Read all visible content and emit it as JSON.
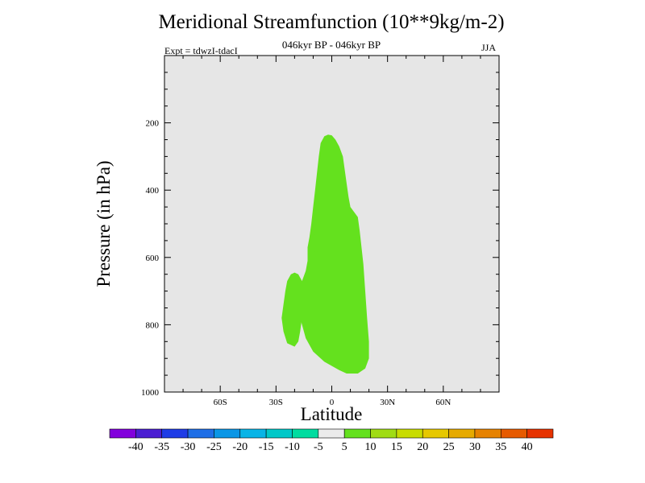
{
  "chart_data": {
    "type": "contour",
    "title": "Meridional Streamfunction (10**9kg/m-2)",
    "subtitle": "046kyr BP - 046kyr BP",
    "left_label": "Expt = tdwzI-tdacI",
    "right_label": "JJA",
    "xlabel": "Latitude",
    "ylabel": "Pressure (in hPa)",
    "xlim": [
      -90,
      90
    ],
    "ylim": [
      1000,
      0
    ],
    "x_ticks": [
      -60,
      -30,
      0,
      30,
      60
    ],
    "x_tick_labels": [
      "60S",
      "30S",
      "0",
      "30N",
      "60N"
    ],
    "y_ticks": [
      200,
      400,
      600,
      800,
      1000
    ],
    "y_tick_labels": [
      "200",
      "400",
      "600",
      "800",
      "1000"
    ],
    "background_color": "#e6e6e6",
    "colorbar": {
      "labels": [
        "-40",
        "-35",
        "-30",
        "-25",
        "-20",
        "-15",
        "-10",
        "-5",
        "5",
        "10",
        "15",
        "20",
        "25",
        "30",
        "35",
        "40"
      ],
      "colors": [
        "#8200dc",
        "#4b1ed2",
        "#1e3ce6",
        "#1e6ee6",
        "#0a96e6",
        "#08b4e6",
        "#00c8c8",
        "#00dca0",
        "#ebebeb",
        "#64e11e",
        "#a0dc14",
        "#c8dc00",
        "#e6c800",
        "#e6aa00",
        "#e68200",
        "#e65a00",
        "#e63200"
      ]
    },
    "regions": [
      {
        "value_range": "5 to 10",
        "color": "#64e11e",
        "points": [
          [
            4,
            935
          ],
          [
            -4,
            910
          ],
          [
            -10,
            880
          ],
          [
            -14,
            840
          ],
          [
            -16,
            800
          ],
          [
            -18,
            760
          ],
          [
            -19,
            720
          ],
          [
            -18,
            690
          ],
          [
            -16,
            670
          ],
          [
            -14,
            640
          ],
          [
            -13,
            610
          ],
          [
            -13,
            570
          ],
          [
            -12,
            540
          ],
          [
            -11,
            500
          ],
          [
            -10,
            450
          ],
          [
            -9,
            400
          ],
          [
            -8,
            350
          ],
          [
            -7,
            300
          ],
          [
            -6,
            260
          ],
          [
            -4,
            240
          ],
          [
            -2,
            235
          ],
          [
            0,
            237
          ],
          [
            2,
            250
          ],
          [
            4,
            270
          ],
          [
            6,
            300
          ],
          [
            7,
            340
          ],
          [
            8,
            380
          ],
          [
            9,
            420
          ],
          [
            10,
            450
          ],
          [
            12,
            465
          ],
          [
            14,
            480
          ],
          [
            15,
            520
          ],
          [
            16,
            570
          ],
          [
            17,
            620
          ],
          [
            18,
            700
          ],
          [
            19,
            780
          ],
          [
            20,
            850
          ],
          [
            20,
            900
          ],
          [
            18,
            930
          ],
          [
            14,
            945
          ],
          [
            8,
            945
          ]
        ]
      },
      {
        "value_range": "5 to 10",
        "color": "#64e11e",
        "points": [
          [
            -20,
            865
          ],
          [
            -24,
            855
          ],
          [
            -26,
            820
          ],
          [
            -27,
            780
          ],
          [
            -26,
            740
          ],
          [
            -25,
            700
          ],
          [
            -24,
            670
          ],
          [
            -22,
            650
          ],
          [
            -20,
            645
          ],
          [
            -18,
            650
          ],
          [
            -16,
            670
          ],
          [
            -15,
            700
          ],
          [
            -15,
            740
          ],
          [
            -16,
            780
          ],
          [
            -17,
            820
          ],
          [
            -18,
            850
          ]
        ]
      },
      {
        "value_range": "5 to 10",
        "color": "#64e11e",
        "points": [
          [
            -9,
            585
          ],
          [
            -10,
            570
          ],
          [
            -10,
            545
          ],
          [
            -9,
            530
          ],
          [
            -8,
            525
          ],
          [
            -7,
            540
          ],
          [
            -7,
            570
          ],
          [
            -8,
            585
          ]
        ]
      }
    ]
  }
}
